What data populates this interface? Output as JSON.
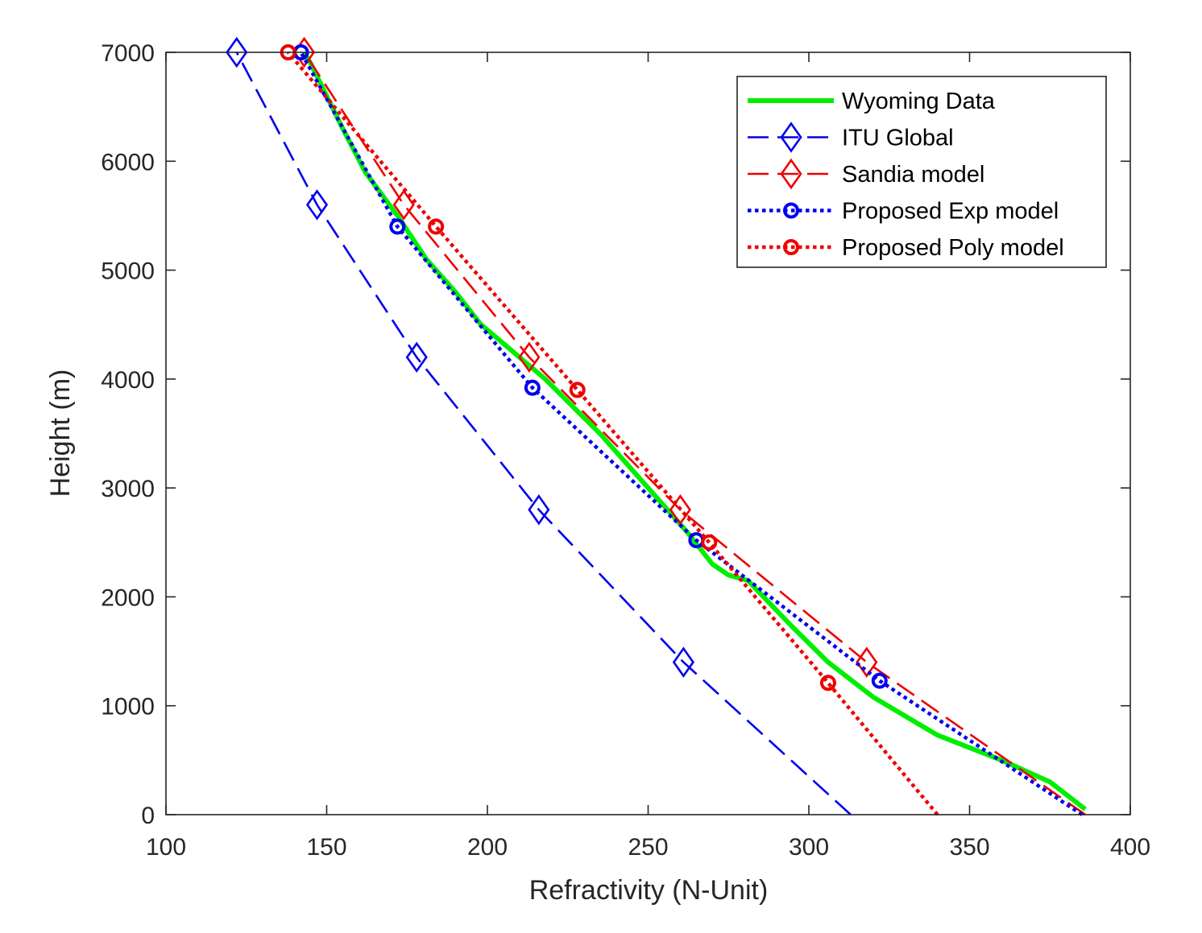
{
  "chart_data": {
    "type": "line",
    "title": "",
    "xlabel": "Refractivity (N-Unit)",
    "ylabel": "Height (m)",
    "xlim": [
      100,
      400
    ],
    "ylim": [
      0,
      7000
    ],
    "xticks": [
      100,
      150,
      200,
      250,
      300,
      350,
      400
    ],
    "yticks": [
      0,
      1000,
      2000,
      3000,
      4000,
      5000,
      6000,
      7000
    ],
    "grid": false,
    "legend_position": "top-right",
    "series": [
      {
        "name": "Wyoming Data",
        "color": "#00ee00",
        "line": "solid",
        "marker": "none",
        "x": [
          386,
          375,
          360,
          340,
          320,
          306,
          295,
          281,
          275,
          270,
          262,
          250,
          235,
          218,
          208,
          198,
          190,
          181,
          172,
          162,
          155,
          150,
          145,
          143
        ],
        "y": [
          50,
          300,
          500,
          730,
          1080,
          1400,
          1720,
          2150,
          2200,
          2300,
          2600,
          3000,
          3500,
          4000,
          4250,
          4500,
          4800,
          5100,
          5500,
          5900,
          6300,
          6600,
          6900,
          7000
        ],
        "markers_x": [],
        "markers_y": []
      },
      {
        "name": "ITU Global",
        "color": "#0000ee",
        "line": "dashed",
        "marker": "diamond",
        "x": [
          313,
          261,
          216,
          178,
          147,
          122
        ],
        "y": [
          0,
          1400,
          2800,
          4200,
          5600,
          7000
        ],
        "markers_x": [
          261,
          216,
          178,
          147,
          122
        ],
        "markers_y": [
          1400,
          2800,
          4200,
          5600,
          7000
        ]
      },
      {
        "name": "Sandia model",
        "color": "#ee0000",
        "line": "dashed",
        "marker": "diamond",
        "x": [
          386,
          318,
          260,
          213,
          174,
          143
        ],
        "y": [
          0,
          1400,
          2800,
          4200,
          5600,
          7000
        ],
        "markers_x": [
          318,
          260,
          213,
          174,
          143
        ],
        "markers_y": [
          1400,
          2800,
          4200,
          5600,
          7000
        ]
      },
      {
        "name": "Proposed Exp model",
        "color": "#0000ee",
        "line": "dotted",
        "marker": "circle",
        "x": [
          385,
          322,
          265,
          214,
          172,
          142
        ],
        "y": [
          0,
          1230,
          2520,
          3920,
          5400,
          7000
        ],
        "markers_x": [
          322,
          265,
          214,
          172,
          142
        ],
        "markers_y": [
          1230,
          2520,
          3920,
          5400,
          7000
        ]
      },
      {
        "name": "Proposed Poly model",
        "color": "#ee0000",
        "line": "dotted",
        "marker": "circle",
        "x": [
          340,
          306,
          269,
          228,
          184,
          138
        ],
        "y": [
          0,
          1210,
          2500,
          3900,
          5400,
          7000
        ],
        "markers_x": [
          306,
          269,
          228,
          184,
          138
        ],
        "markers_y": [
          1210,
          2500,
          3900,
          5400,
          7000
        ]
      }
    ]
  }
}
